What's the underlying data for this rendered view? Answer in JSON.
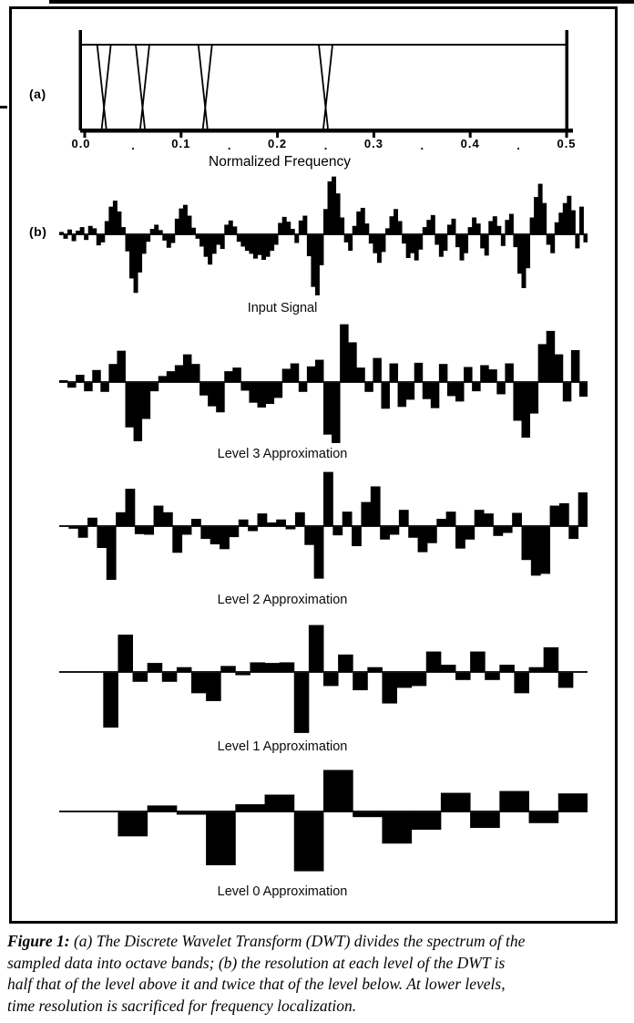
{
  "page": {
    "background": "#ffffff",
    "ink": "#000000"
  },
  "figure": {
    "panel_a": "(a)",
    "panel_b": "(b)",
    "caption_lead": "Figure 1:",
    "caption_lines": [
      "(a) The Discrete Wavelet Transform (DWT) divides the spectrum of the",
      "sampled data into octave bands; (b) the resolution at each level of the DWT is",
      "half that of the level above it and twice that of the level below. At lower levels,",
      "time resolution is sacrificed for frequency localization."
    ]
  },
  "chart_data": [
    {
      "type": "line",
      "name": "dwt-filter-bank",
      "description": "Magnitude responses of octave-band DWT filters; flat passbands with narrow V-shaped transition notches at each octave band edge",
      "xlabel": "Normalized Frequency",
      "xlim": [
        0,
        0.5
      ],
      "x_ticks": [
        {
          "label": "0.0",
          "value": 0
        },
        {
          "label": "0.1",
          "value": 0.1
        },
        {
          "label": "0.2",
          "value": 0.2
        },
        {
          "label": "0.3",
          "value": 0.3
        },
        {
          "label": "0.4",
          "value": 0.4
        },
        {
          "label": "0.5",
          "value": 0.5
        }
      ],
      "minor_tick_marker": ".",
      "minor_tick_values": [
        0.05,
        0.15,
        0.25,
        0.35,
        0.45
      ],
      "band_edges": [
        0.02,
        0.06,
        0.125,
        0.25,
        0.5
      ],
      "grid": false,
      "legend": false
    },
    {
      "type": "bar",
      "name": "input-signal",
      "label": "Input Signal",
      "ylim": [
        -100,
        100
      ],
      "values": [
        4,
        -6,
        8,
        -10,
        6,
        12,
        -8,
        14,
        10,
        -17,
        -12,
        22,
        46,
        56,
        38,
        12,
        -27,
        -72,
        -96,
        -62,
        -31,
        -11,
        9,
        16,
        7,
        -9,
        -21,
        -13,
        26,
        43,
        49,
        31,
        11,
        -6,
        -19,
        -36,
        -49,
        -31,
        -16,
        -23,
        16,
        23,
        13,
        -11,
        -19,
        -26,
        -31,
        -39,
        -33,
        -41,
        -36,
        -26,
        -16,
        19,
        29,
        21,
        9,
        -13,
        23,
        31,
        -35,
        -86,
        -100,
        -50,
        42,
        88,
        96,
        68,
        28,
        -12,
        -26,
        14,
        38,
        44,
        18,
        -14,
        -30,
        -46,
        -28,
        10,
        30,
        42,
        22,
        -14,
        -38,
        -30,
        -42,
        -24,
        12,
        24,
        32,
        -16,
        -36,
        -26,
        16,
        26,
        -20,
        -42,
        -30,
        12,
        28,
        18,
        -22,
        -34,
        22,
        30,
        14,
        -18,
        24,
        34,
        -20,
        -64,
        -88,
        -55,
        28,
        62,
        84,
        52,
        -16,
        -30,
        20,
        36,
        52,
        64,
        40,
        -22,
        46,
        -12
      ]
    },
    {
      "type": "bar",
      "name": "level-3-approximation",
      "label": "Level 3 Approximation",
      "ylim": [
        -100,
        100
      ],
      "values": [
        3,
        -8,
        12,
        -14,
        20,
        -15,
        30,
        52,
        -74,
        -97,
        -60,
        -14,
        10,
        18,
        28,
        46,
        30,
        -21,
        -39,
        -49,
        18,
        24,
        -13,
        -33,
        -41,
        -35,
        -25,
        22,
        31,
        -15,
        26,
        37,
        -86,
        -100,
        96,
        66,
        24,
        -15,
        40,
        -43,
        31,
        -40,
        -28,
        32,
        -27,
        -42,
        30,
        -22,
        -31,
        25,
        -14,
        28,
        21,
        -19,
        31,
        -63,
        -91,
        -51,
        63,
        85,
        46,
        -31,
        53,
        -23
      ]
    },
    {
      "type": "bar",
      "name": "level-2-approximation",
      "label": "Level 2 Approximation",
      "ylim": [
        -100,
        100
      ],
      "values": [
        0,
        -3,
        -18,
        14,
        -35,
        -88,
        23,
        62,
        -12,
        -13,
        34,
        23,
        -43,
        -13,
        12,
        -20,
        -29,
        -37,
        -17,
        11,
        -7,
        21,
        6,
        11,
        -4,
        23,
        -30,
        -86,
        90,
        -14,
        24,
        -32,
        40,
        66,
        -21,
        -13,
        27,
        -18,
        -42,
        -27,
        12,
        24,
        -36,
        -21,
        27,
        21,
        -15,
        -10,
        22,
        -55,
        -81,
        -78,
        34,
        38,
        -20,
        56
      ]
    },
    {
      "type": "bar",
      "name": "level-1-approximation",
      "label": "Level 1 Approximation",
      "ylim": [
        -100,
        100
      ],
      "values": [
        0,
        0,
        0,
        -91,
        62,
        -15,
        15,
        -15,
        8,
        -34,
        -47,
        10,
        -4,
        16,
        15,
        16,
        -100,
        78,
        -22,
        29,
        -29,
        8,
        -51,
        -25,
        -22,
        34,
        12,
        -12,
        34,
        -12,
        12,
        -34,
        8,
        41,
        -25,
        0
      ]
    },
    {
      "type": "bar",
      "name": "level-0-approximation",
      "label": "Level 0 Approximation",
      "ylim": [
        -100,
        100
      ],
      "values": [
        0,
        0,
        -40,
        10,
        -4,
        -88,
        12,
        28,
        -98,
        69,
        -8,
        -52,
        -29,
        31,
        -26,
        34,
        -18,
        30
      ]
    }
  ]
}
